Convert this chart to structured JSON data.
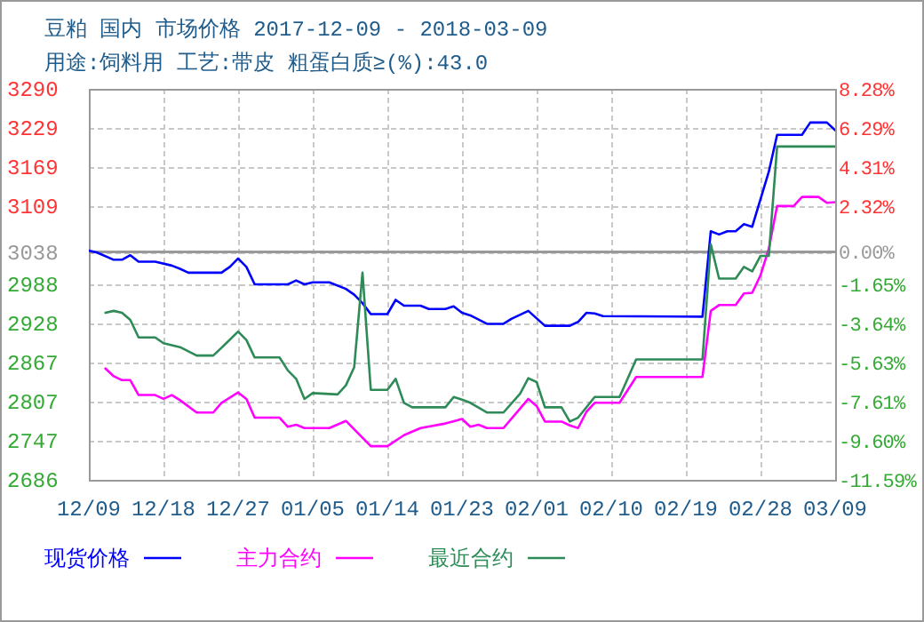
{
  "chart_data": {
    "type": "line",
    "title": "豆粕 国内 市场价格 2017-12-09 - 2018-03-09",
    "subtitle": "用途:饲料用 工艺:带皮 粗蛋白质≥(%):43.0",
    "xlim": [
      "2017-12-09",
      "2018-03-09"
    ],
    "xticks": [
      {
        "value": "2017-12-09",
        "label": "12/09"
      },
      {
        "value": "2017-12-18",
        "label": "12/18"
      },
      {
        "value": "2017-12-27",
        "label": "12/27"
      },
      {
        "value": "2018-01-05",
        "label": "01/05"
      },
      {
        "value": "2018-01-14",
        "label": "01/14"
      },
      {
        "value": "2018-01-23",
        "label": "01/23"
      },
      {
        "value": "2018-02-01",
        "label": "02/01"
      },
      {
        "value": "2018-02-10",
        "label": "02/10"
      },
      {
        "value": "2018-02-19",
        "label": "02/19"
      },
      {
        "value": "2018-02-28",
        "label": "02/28"
      },
      {
        "value": "2018-03-09",
        "label": "03/09"
      }
    ],
    "ylim": [
      2686,
      3290
    ],
    "yticks": [
      3290,
      3229,
      3169,
      3109,
      3038,
      2988,
      2928,
      2867,
      2807,
      2747,
      2686
    ],
    "y2lim": [
      -11.59,
      8.28
    ],
    "y2ticks": [
      {
        "value": 8.28,
        "label": "8.28%"
      },
      {
        "value": 6.29,
        "label": "6.29%"
      },
      {
        "value": 4.31,
        "label": "4.31%"
      },
      {
        "value": 2.32,
        "label": "2.32%"
      },
      {
        "value": 0,
        "label": "0.00%"
      },
      {
        "value": -1.65,
        "label": "-1.65%"
      },
      {
        "value": -3.64,
        "label": "-3.64%"
      },
      {
        "value": -5.63,
        "label": "-5.63%"
      },
      {
        "value": -7.61,
        "label": "-7.61%"
      },
      {
        "value": -9.6,
        "label": "-9.60%"
      },
      {
        "value": -11.59,
        "label": "-11.59%"
      }
    ],
    "ref_lines": [
      {
        "axis": "y",
        "value": 3038,
        "color": "#999999"
      }
    ],
    "grid": true,
    "legend": "bottom",
    "series": [
      {
        "name": "现货价格",
        "color": "#0000ff",
        "x": [
          "2017-12-09",
          "2017-12-10",
          "2017-12-12",
          "2017-12-13",
          "2017-12-14",
          "2017-12-15",
          "2017-12-17",
          "2017-12-19",
          "2017-12-20",
          "2017-12-21",
          "2017-12-25",
          "2017-12-26",
          "2017-12-27",
          "2017-12-28",
          "2017-12-29",
          "2018-01-02",
          "2018-01-03",
          "2018-01-04",
          "2018-01-05",
          "2018-01-07",
          "2018-01-09",
          "2018-01-10",
          "2018-01-11",
          "2018-01-12",
          "2018-01-14",
          "2018-01-15",
          "2018-01-16",
          "2018-01-18",
          "2018-01-19",
          "2018-01-21",
          "2018-01-22",
          "2018-01-23",
          "2018-01-24",
          "2018-01-26",
          "2018-01-28",
          "2018-01-29",
          "2018-01-31",
          "2018-02-02",
          "2018-02-05",
          "2018-02-06",
          "2018-02-07",
          "2018-02-08",
          "2018-02-09",
          "2018-02-21",
          "2018-02-22",
          "2018-02-23",
          "2018-02-24",
          "2018-02-25",
          "2018-02-26",
          "2018-02-27",
          "2018-03-01",
          "2018-03-02",
          "2018-03-05",
          "2018-03-06",
          "2018-03-08",
          "2018-03-09"
        ],
        "values": [
          3040,
          3037,
          3026,
          3026,
          3033,
          3023,
          3023,
          3017,
          3012,
          3006,
          3006,
          3015,
          3028,
          3015,
          2988,
          2988,
          2994,
          2988,
          2991,
          2991,
          2981,
          2972,
          2959,
          2942,
          2942,
          2964,
          2955,
          2955,
          2950,
          2950,
          2954,
          2944,
          2940,
          2927,
          2927,
          2935,
          2947,
          2924,
          2924,
          2930,
          2944,
          2943,
          2939,
          2938,
          3070,
          3065,
          3070,
          3070,
          3081,
          3077,
          3162,
          3219,
          3219,
          3238,
          3238,
          3226
        ]
      },
      {
        "name": "主力合约",
        "color": "#ff00ff",
        "x": [
          "2017-12-11",
          "2017-12-12",
          "2017-12-13",
          "2017-12-14",
          "2017-12-15",
          "2017-12-17",
          "2017-12-18",
          "2017-12-19",
          "2017-12-20",
          "2017-12-22",
          "2017-12-24",
          "2017-12-25",
          "2017-12-27",
          "2017-12-28",
          "2017-12-29",
          "2018-01-01",
          "2018-01-02",
          "2018-01-03",
          "2018-01-04",
          "2018-01-07",
          "2018-01-09",
          "2018-01-10",
          "2018-01-12",
          "2018-01-14",
          "2018-01-16",
          "2018-01-18",
          "2018-01-21",
          "2018-01-23",
          "2018-01-24",
          "2018-01-25",
          "2018-01-26",
          "2018-01-28",
          "2018-01-30",
          "2018-01-31",
          "2018-02-01",
          "2018-02-02",
          "2018-02-04",
          "2018-02-05",
          "2018-02-06",
          "2018-02-07",
          "2018-02-08",
          "2018-02-11",
          "2018-02-13",
          "2018-02-21",
          "2018-02-22",
          "2018-02-23",
          "2018-02-25",
          "2018-02-26",
          "2018-02-27",
          "2018-02-28",
          "2018-03-01",
          "2018-03-02",
          "2018-03-04",
          "2018-03-05",
          "2018-03-07",
          "2018-03-08",
          "2018-03-09"
        ],
        "values": [
          2858,
          2846,
          2840,
          2840,
          2817,
          2817,
          2811,
          2817,
          2809,
          2790,
          2790,
          2805,
          2821,
          2811,
          2782,
          2782,
          2768,
          2771,
          2766,
          2766,
          2777,
          2764,
          2738,
          2738,
          2755,
          2766,
          2773,
          2780,
          2768,
          2771,
          2766,
          2766,
          2796,
          2811,
          2800,
          2776,
          2776,
          2770,
          2766,
          2791,
          2805,
          2805,
          2845,
          2845,
          2947,
          2956,
          2956,
          2974,
          2975,
          3002,
          3043,
          3109,
          3109,
          3123,
          3123,
          3114,
          3115
        ]
      },
      {
        "name": "最近合约",
        "color": "#2e8b57",
        "x": [
          "2017-12-11",
          "2017-12-12",
          "2017-12-13",
          "2017-12-14",
          "2017-12-15",
          "2017-12-17",
          "2017-12-18",
          "2017-12-20",
          "2017-12-22",
          "2017-12-24",
          "2017-12-25",
          "2017-12-27",
          "2017-12-28",
          "2017-12-29",
          "2018-01-01",
          "2018-01-02",
          "2018-01-03",
          "2018-01-04",
          "2018-01-05",
          "2018-01-08",
          "2018-01-09",
          "2018-01-10",
          "2018-01-11",
          "2018-01-12",
          "2018-01-14",
          "2018-01-15",
          "2018-01-16",
          "2018-01-17",
          "2018-01-21",
          "2018-01-22",
          "2018-01-23",
          "2018-01-24",
          "2018-01-26",
          "2018-01-28",
          "2018-01-30",
          "2018-01-31",
          "2018-02-01",
          "2018-02-02",
          "2018-02-04",
          "2018-02-05",
          "2018-02-06",
          "2018-02-08",
          "2018-02-11",
          "2018-02-13",
          "2018-02-21",
          "2018-02-22",
          "2018-02-23",
          "2018-02-25",
          "2018-02-26",
          "2018-02-27",
          "2018-02-28",
          "2018-03-01",
          "2018-03-02",
          "2018-03-09"
        ],
        "values": [
          2944,
          2947,
          2944,
          2933,
          2906,
          2906,
          2897,
          2891,
          2878,
          2878,
          2890,
          2915,
          2902,
          2875,
          2875,
          2855,
          2842,
          2811,
          2820,
          2818,
          2832,
          2860,
          3006,
          2825,
          2825,
          2842,
          2805,
          2798,
          2798,
          2814,
          2810,
          2805,
          2790,
          2790,
          2819,
          2843,
          2837,
          2798,
          2798,
          2776,
          2782,
          2814,
          2814,
          2872,
          2872,
          3050,
          2997,
          2997,
          3015,
          3008,
          3032,
          3032,
          3201,
          3201
        ]
      }
    ]
  }
}
